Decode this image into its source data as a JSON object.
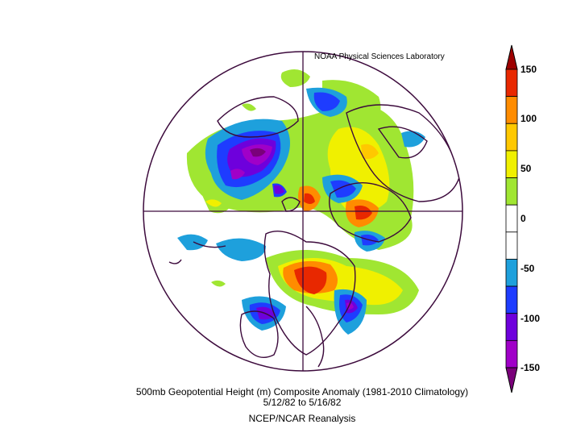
{
  "credit": "NOAA Physical Sciences Laboratory",
  "caption": {
    "line1": "500mb Geopotential Height (m) Composite Anomaly (1981-2010 Climatology)",
    "line2": "5/12/82   to 5/16/82",
    "line3": "NCEP/NCAR Reanalysis"
  },
  "colorbar": {
    "labels": [
      "150",
      "100",
      "50",
      "0",
      "-50",
      "-100",
      "-150"
    ],
    "colors": [
      "#9e0000",
      "#e82800",
      "#ff8c00",
      "#ffc800",
      "#f0f000",
      "#a0e632",
      "#ffffff",
      "#ffffff",
      "#1ea0dc",
      "#1e3cff",
      "#6e00dc",
      "#a000c8",
      "#7a007a"
    ]
  }
}
